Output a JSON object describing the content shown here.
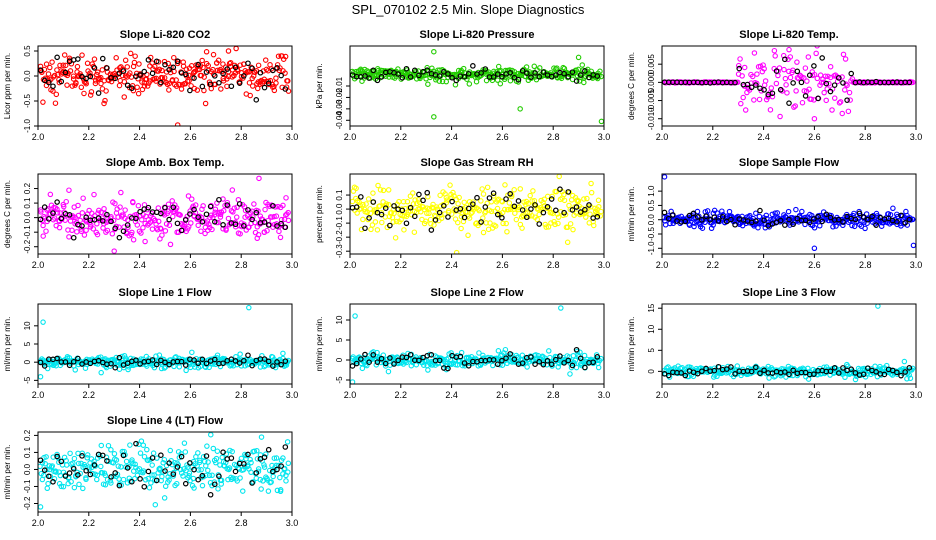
{
  "figure_title": "SPL_070102  2.5 Min. Slope Diagnostics",
  "marker_shape": "open-circle",
  "highlight_color": "#000000",
  "chart_data": [
    {
      "type": "scatter",
      "title": "Slope Li-820 CO2",
      "ylabel": "Licor ppm per min.",
      "color": "#ff0000",
      "xlim": [
        2.0,
        3.0
      ],
      "ylim": [
        -1.0,
        0.6
      ],
      "xticks": [
        "2.0",
        "2.2",
        "2.4",
        "2.6",
        "2.8",
        "3.0"
      ],
      "yticks": [
        -1.0,
        -0.5,
        0.0,
        0.5
      ],
      "ytick_labels": [
        "-1.0",
        "-0.5",
        "0.0",
        "0.5"
      ],
      "spread": 0.2,
      "center": 0.0,
      "n": 320,
      "outliers": [
        [
          2.55,
          -0.98
        ],
        [
          2.78,
          0.55
        ],
        [
          2.75,
          0.5
        ]
      ]
    },
    {
      "type": "scatter",
      "title": "Slope Li-820 Pressure",
      "ylabel": "kPa per min.",
      "color": "#22cc00",
      "xlim": [
        2.0,
        3.0
      ],
      "ylim": [
        -0.045,
        0.025
      ],
      "xticks": [
        "2.0",
        "2.2",
        "2.4",
        "2.6",
        "2.8",
        "3.0"
      ],
      "yticks": [
        -0.04,
        -0.03,
        -0.02,
        -0.01
      ],
      "ytick_labels": [
        "-0.04",
        "-0.03",
        "-0.02",
        "-0.01"
      ],
      "spread": 0.003,
      "center": 0.0,
      "n": 320,
      "outliers": [
        [
          2.33,
          -0.037
        ],
        [
          2.67,
          -0.03
        ],
        [
          2.99,
          -0.041
        ],
        [
          2.33,
          0.02
        ],
        [
          2.9,
          0.015
        ]
      ]
    },
    {
      "type": "scatter",
      "title": "Slope Li-820 Temp.",
      "ylabel": "degrees C per min.",
      "color": "#ff00ff",
      "xlim": [
        2.0,
        3.0
      ],
      "ylim": [
        -0.012,
        0.01
      ],
      "xticks": [
        "2.0",
        "2.2",
        "2.4",
        "2.6",
        "2.8",
        "3.0"
      ],
      "yticks": [
        -0.01,
        -0.005,
        0.0,
        0.005
      ],
      "ytick_labels": [
        "-0.010",
        "-0.005",
        "0.000",
        "0.005"
      ],
      "spread": 0.004,
      "center": 0.0,
      "n": 260,
      "band": [
        2.3,
        2.75
      ],
      "outliers": [
        [
          2.5,
          0.009
        ],
        [
          2.6,
          -0.01
        ]
      ]
    },
    {
      "type": "scatter",
      "title": "Slope Amb. Box Temp.",
      "ylabel": "degrees C per min.",
      "color": "#ff00ff",
      "xlim": [
        2.0,
        3.0
      ],
      "ylim": [
        -0.25,
        0.3
      ],
      "xticks": [
        "2.0",
        "2.2",
        "2.4",
        "2.6",
        "2.8",
        "3.0"
      ],
      "yticks": [
        -0.2,
        -0.1,
        0.0,
        0.1,
        0.2
      ],
      "ytick_labels": [
        "-0.2",
        "-0.1",
        "0.0",
        "0.1",
        "0.2"
      ],
      "spread": 0.07,
      "center": 0.0,
      "n": 320,
      "outliers": [
        [
          2.3,
          -0.23
        ],
        [
          2.87,
          0.27
        ]
      ]
    },
    {
      "type": "scatter",
      "title": "Slope Gas Stream RH",
      "ylabel": "percent per min.",
      "color": "#ffff00",
      "xlim": [
        2.0,
        3.0
      ],
      "ylim": [
        -0.32,
        0.25
      ],
      "xticks": [
        "2.0",
        "2.2",
        "2.4",
        "2.6",
        "2.8",
        "3.0"
      ],
      "yticks": [
        -0.3,
        -0.2,
        -0.1,
        0.0,
        0.1
      ],
      "ytick_labels": [
        "-0.3",
        "-0.2",
        "-0.1",
        "0.0",
        "0.1"
      ],
      "spread": 0.08,
      "center": 0.0,
      "n": 320,
      "outliers": [
        [
          2.42,
          -0.31
        ]
      ]
    },
    {
      "type": "scatter",
      "title": "Slope Sample Flow",
      "ylabel": "ml/min per min.",
      "color": "#0000ff",
      "xlim": [
        2.0,
        3.0
      ],
      "ylim": [
        -1.2,
        1.6
      ],
      "xticks": [
        "2.0",
        "2.2",
        "2.4",
        "2.6",
        "2.8",
        "3.0"
      ],
      "yticks": [
        -1.0,
        -0.5,
        0.0,
        0.5,
        1.0
      ],
      "ytick_labels": [
        "-1.0",
        "-0.5",
        "0.0",
        "0.5",
        "1.0"
      ],
      "spread": 0.12,
      "center": 0.0,
      "n": 320,
      "outliers": [
        [
          2.01,
          1.5
        ],
        [
          2.6,
          -1.0
        ],
        [
          2.99,
          -0.9
        ]
      ]
    },
    {
      "type": "scatter",
      "title": "Slope Line 1 Flow",
      "ylabel": "ml/min per min.",
      "color": "#00e5ee",
      "xlim": [
        2.0,
        3.0
      ],
      "ylim": [
        -6.0,
        16.0
      ],
      "xticks": [
        "2.0",
        "2.2",
        "2.4",
        "2.6",
        "2.8",
        "3.0"
      ],
      "yticks": [
        -5,
        0,
        5,
        10
      ],
      "ytick_labels": [
        "-5",
        "0",
        "5",
        "10"
      ],
      "spread": 0.8,
      "center": 0.0,
      "n": 320,
      "outliers": [
        [
          2.02,
          11.0
        ],
        [
          2.83,
          15.0
        ],
        [
          2.01,
          -4.0
        ]
      ]
    },
    {
      "type": "scatter",
      "title": "Slope Line 2 Flow",
      "ylabel": "ml/min per min.",
      "color": "#00e5ee",
      "xlim": [
        2.0,
        3.0
      ],
      "ylim": [
        -6.0,
        14.0
      ],
      "xticks": [
        "2.0",
        "2.2",
        "2.4",
        "2.6",
        "2.8",
        "3.0"
      ],
      "yticks": [
        -5,
        0,
        5,
        10
      ],
      "ytick_labels": [
        "-5",
        "0",
        "5",
        "10"
      ],
      "spread": 0.9,
      "center": 0.0,
      "n": 320,
      "outliers": [
        [
          2.02,
          11.0
        ],
        [
          2.83,
          13.0
        ],
        [
          2.01,
          -5.5
        ]
      ]
    },
    {
      "type": "scatter",
      "title": "Slope Line 3 Flow",
      "ylabel": "ml/min per min.",
      "color": "#00e5ee",
      "xlim": [
        2.0,
        3.0
      ],
      "ylim": [
        -3.0,
        16.0
      ],
      "xticks": [
        "2.0",
        "2.2",
        "2.4",
        "2.6",
        "2.8",
        "3.0"
      ],
      "yticks": [
        0,
        5,
        10,
        15
      ],
      "ytick_labels": [
        "0",
        "5",
        "10",
        "15"
      ],
      "spread": 0.6,
      "center": 0.0,
      "n": 320,
      "outliers": [
        [
          2.85,
          15.5
        ]
      ]
    },
    {
      "type": "scatter",
      "title": "Slope Line 4 (LT) Flow",
      "ylabel": "ml/min per min.",
      "color": "#00e5ee",
      "xlim": [
        2.0,
        3.0
      ],
      "ylim": [
        -0.25,
        0.22
      ],
      "xticks": [
        "2.0",
        "2.2",
        "2.4",
        "2.6",
        "2.8",
        "3.0"
      ],
      "yticks": [
        -0.2,
        -0.1,
        0.0,
        0.1,
        0.2
      ],
      "ytick_labels": [
        "-0.2",
        "-0.1",
        "0.0",
        "0.1",
        "0.2"
      ],
      "spread": 0.07,
      "center": 0.0,
      "n": 320,
      "outliers": [
        [
          2.01,
          -0.22
        ],
        [
          2.88,
          0.19
        ]
      ]
    }
  ]
}
